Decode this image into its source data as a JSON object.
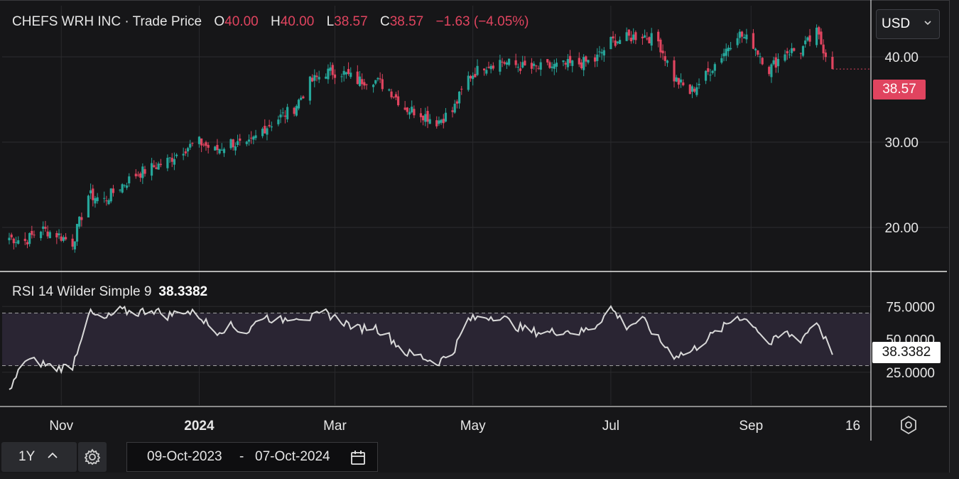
{
  "header": {
    "symbol": "CHEFS WRH INC",
    "separator": "·",
    "series_label": "Trade Price",
    "o_label": "O",
    "o_value": "40.00",
    "h_label": "H",
    "h_value": "40.00",
    "l_label": "L",
    "l_value": "38.57",
    "c_label": "C",
    "c_value": "38.57",
    "change": "−1.63 (−4.05%)"
  },
  "currency": {
    "selected": "USD",
    "icon": "chevron-down-icon"
  },
  "price_axis": {
    "labels": [
      "40.00",
      "30.00",
      "20.00"
    ],
    "last_price_tag": "38.57"
  },
  "rsi": {
    "label": "RSI 14 Wilder Simple 9",
    "value": "38.3382",
    "axis_labels": [
      "75.0000",
      "50.0000",
      "25.0000"
    ],
    "last_value_tag": "38.3382"
  },
  "time_axis": {
    "labels": [
      "Nov",
      "2024",
      "Mar",
      "May",
      "Jul",
      "Sep",
      "16"
    ]
  },
  "controls": {
    "range_label": "1Y",
    "date_from": "09-Oct-2023",
    "date_sep": "-",
    "date_to": "07-Oct-2024",
    "settings_icon": "gear-icon",
    "range_icon": "chevron-up-icon",
    "calendar_icon": "calendar-icon",
    "axis_settings_icon": "settings-icon"
  },
  "colors": {
    "up": "#26a69a",
    "down": "#e0445f",
    "rsi_line": "#d9d9d9",
    "rsi_band": "#2a2533"
  },
  "chart_data": [
    {
      "type": "candlestick",
      "title": "CHEFS WRH INC · Trade Price",
      "x_range": [
        "2023-10-09",
        "2024-10-07"
      ],
      "ylim": [
        15,
        46
      ],
      "y_ticks": [
        20,
        30,
        40
      ],
      "grid": true,
      "points": [
        [
          "2023-10-09",
          18.8
        ],
        [
          "2023-10-16",
          18.4
        ],
        [
          "2023-10-23",
          19.8
        ],
        [
          "2023-10-30",
          19.2
        ],
        [
          "2023-11-06",
          18.2
        ],
        [
          "2023-11-13",
          23.8
        ],
        [
          "2023-11-20",
          23.2
        ],
        [
          "2023-11-27",
          24.8
        ],
        [
          "2023-12-04",
          26.2
        ],
        [
          "2023-12-11",
          27.0
        ],
        [
          "2023-12-18",
          27.8
        ],
        [
          "2023-12-25",
          29.2
        ],
        [
          "2024-01-01",
          30.0
        ],
        [
          "2024-01-08",
          29.0
        ],
        [
          "2024-01-15",
          30.0
        ],
        [
          "2024-01-22",
          29.4
        ],
        [
          "2024-01-29",
          31.5
        ],
        [
          "2024-02-05",
          32.8
        ],
        [
          "2024-02-12",
          34.0
        ],
        [
          "2024-02-19",
          37.0
        ],
        [
          "2024-02-26",
          38.2
        ],
        [
          "2024-03-04",
          38.2
        ],
        [
          "2024-03-11",
          37.2
        ],
        [
          "2024-03-18",
          37.4
        ],
        [
          "2024-03-25",
          36.2
        ],
        [
          "2024-04-01",
          34.0
        ],
        [
          "2024-04-08",
          33.4
        ],
        [
          "2024-04-15",
          32.4
        ],
        [
          "2024-04-22",
          33.6
        ],
        [
          "2024-04-29",
          37.6
        ],
        [
          "2024-05-06",
          39.0
        ],
        [
          "2024-05-13",
          39.5
        ],
        [
          "2024-05-20",
          39.0
        ],
        [
          "2024-05-27",
          38.6
        ],
        [
          "2024-06-03",
          38.8
        ],
        [
          "2024-06-10",
          39.0
        ],
        [
          "2024-06-17",
          39.2
        ],
        [
          "2024-06-24",
          39.6
        ],
        [
          "2024-07-01",
          41.8
        ],
        [
          "2024-07-08",
          42.2
        ],
        [
          "2024-07-15",
          42.6
        ],
        [
          "2024-07-22",
          41.8
        ],
        [
          "2024-07-29",
          37.5
        ],
        [
          "2024-08-05",
          35.8
        ],
        [
          "2024-08-12",
          37.8
        ],
        [
          "2024-08-19",
          40.2
        ],
        [
          "2024-08-26",
          42.8
        ],
        [
          "2024-09-02",
          41.5
        ],
        [
          "2024-09-09",
          38.5
        ],
        [
          "2024-09-16",
          40.6
        ],
        [
          "2024-09-23",
          40.8
        ],
        [
          "2024-09-30",
          42.8
        ],
        [
          "2024-10-07",
          38.57
        ]
      ]
    },
    {
      "type": "line",
      "title": "RSI 14 Wilder Simple 9",
      "ylim": [
        0,
        100
      ],
      "y_ticks": [
        25,
        50,
        75
      ],
      "band": [
        30,
        70
      ],
      "points": [
        [
          "2023-10-09",
          10
        ],
        [
          "2023-10-16",
          35
        ],
        [
          "2023-10-23",
          32
        ],
        [
          "2023-10-30",
          28
        ],
        [
          "2023-11-06",
          30
        ],
        [
          "2023-11-13",
          70
        ],
        [
          "2023-11-20",
          65
        ],
        [
          "2023-11-27",
          72
        ],
        [
          "2023-12-04",
          70
        ],
        [
          "2023-12-11",
          73
        ],
        [
          "2023-12-18",
          68
        ],
        [
          "2023-12-25",
          72
        ],
        [
          "2024-01-01",
          68
        ],
        [
          "2024-01-08",
          56
        ],
        [
          "2024-01-15",
          60
        ],
        [
          "2024-01-22",
          55
        ],
        [
          "2024-01-29",
          68
        ],
        [
          "2024-02-05",
          64
        ],
        [
          "2024-02-12",
          68
        ],
        [
          "2024-02-19",
          66
        ],
        [
          "2024-02-26",
          70
        ],
        [
          "2024-03-04",
          64
        ],
        [
          "2024-03-11",
          58
        ],
        [
          "2024-03-18",
          60
        ],
        [
          "2024-03-25",
          52
        ],
        [
          "2024-04-01",
          40
        ],
        [
          "2024-04-08",
          37
        ],
        [
          "2024-04-15",
          32
        ],
        [
          "2024-04-22",
          40
        ],
        [
          "2024-04-29",
          65
        ],
        [
          "2024-05-06",
          67
        ],
        [
          "2024-05-13",
          68
        ],
        [
          "2024-05-20",
          60
        ],
        [
          "2024-05-27",
          56
        ],
        [
          "2024-06-03",
          55
        ],
        [
          "2024-06-10",
          57
        ],
        [
          "2024-06-17",
          55
        ],
        [
          "2024-06-24",
          60
        ],
        [
          "2024-07-01",
          74
        ],
        [
          "2024-07-08",
          60
        ],
        [
          "2024-07-15",
          65
        ],
        [
          "2024-07-22",
          50
        ],
        [
          "2024-07-29",
          38
        ],
        [
          "2024-08-05",
          40
        ],
        [
          "2024-08-12",
          50
        ],
        [
          "2024-08-19",
          58
        ],
        [
          "2024-08-26",
          68
        ],
        [
          "2024-09-02",
          62
        ],
        [
          "2024-09-09",
          46
        ],
        [
          "2024-09-16",
          55
        ],
        [
          "2024-09-23",
          50
        ],
        [
          "2024-09-30",
          64
        ],
        [
          "2024-10-07",
          38.3382
        ]
      ]
    }
  ]
}
